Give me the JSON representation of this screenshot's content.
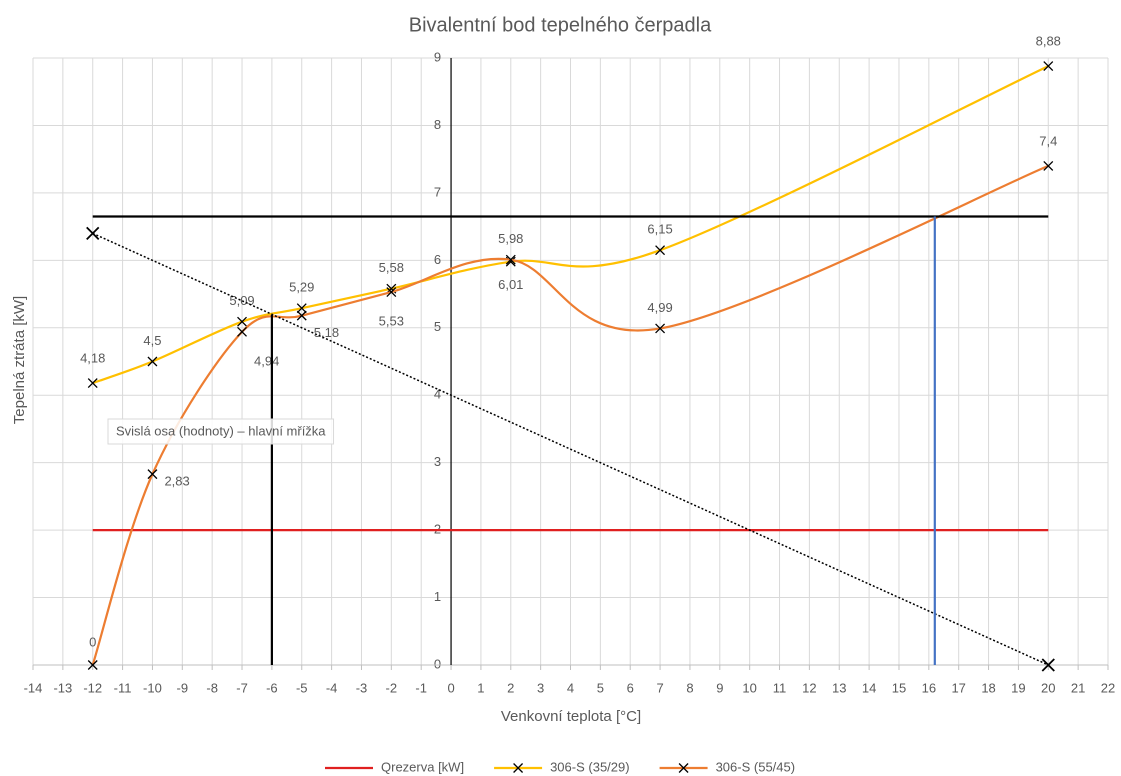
{
  "chart_data": {
    "type": "scatter",
    "title": "Bivalentní bod tepelného čerpadla",
    "x_label": "Venkovní teplota [°C]",
    "y_label": "Tepelná ztráta [kW]",
    "tooltip": "Svislá osa (hodnoty) – hlavní mřížka",
    "xlim": [
      -14,
      22
    ],
    "xticks": [
      -14,
      -13,
      -12,
      -11,
      -10,
      -9,
      -8,
      -7,
      -6,
      -5,
      -4,
      -3,
      -2,
      -1,
      0,
      1,
      2,
      3,
      4,
      5,
      6,
      7,
      8,
      9,
      10,
      11,
      12,
      13,
      14,
      15,
      16,
      17,
      18,
      19,
      20,
      21,
      22
    ],
    "ylim": [
      0,
      9
    ],
    "yticks": [
      0,
      1,
      2,
      3,
      4,
      5,
      6,
      7,
      8,
      9
    ],
    "grid": true,
    "legend": "bottom",
    "series": [
      {
        "name": "Qrezerva [kW]",
        "color": "#e02020",
        "x": [
          -12,
          20
        ],
        "values": [
          2,
          2
        ]
      },
      {
        "name": "306-S (35/29)",
        "color": "#ffc000",
        "smooth": true,
        "marker": "x",
        "x": [
          -12,
          -10,
          -7,
          -5,
          -2,
          2,
          7,
          20
        ],
        "values": [
          4.18,
          4.5,
          5.09,
          5.29,
          5.58,
          5.98,
          6.15,
          8.88
        ],
        "value_labels": [
          "4,18",
          "4,5",
          "5,09",
          "5,29",
          "5,58",
          "5,98",
          "6,15",
          "8,88"
        ]
      },
      {
        "name": "306-S (55/45)",
        "color": "#ed7d31",
        "smooth": true,
        "marker": "x",
        "x": [
          -12,
          -10,
          -7,
          -5,
          -2,
          2,
          7,
          20
        ],
        "values": [
          0,
          2.83,
          4.94,
          5.18,
          5.53,
          6.01,
          4.99,
          7.4
        ],
        "value_labels": [
          "0",
          "2,83",
          "4,94",
          "5,18",
          "5,53",
          "6,01",
          "4,99",
          "7,4"
        ]
      },
      {
        "color": "#000000",
        "x": [
          -12,
          20
        ],
        "values": [
          6.65,
          6.65
        ]
      },
      {
        "color": "#000000",
        "dotted": true,
        "marker": "x",
        "x": [
          -12,
          20
        ],
        "values": [
          6.4,
          0
        ]
      },
      {
        "color": "#000000",
        "x": [
          -6,
          -6
        ],
        "values": [
          0,
          5.19
        ]
      },
      {
        "color": "#4472c4",
        "x": [
          16.2,
          16.2
        ],
        "values": [
          0,
          6.65
        ]
      }
    ]
  }
}
